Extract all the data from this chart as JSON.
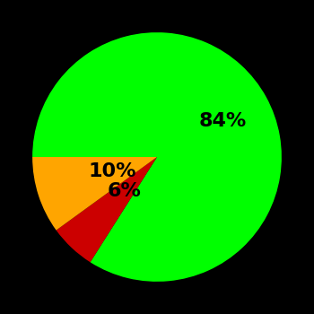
{
  "slices": [
    84,
    6,
    10
  ],
  "colors": [
    "#00ff00",
    "#cc0000",
    "#ffa500"
  ],
  "labels": [
    "84%",
    "6%",
    "10%"
  ],
  "background_color": "#000000",
  "text_color": "#000000",
  "startangle": 180,
  "counterclock": false,
  "label_fontsize": 16,
  "label_fontweight": "bold",
  "label_radii": [
    0.6,
    0.38,
    0.38
  ]
}
